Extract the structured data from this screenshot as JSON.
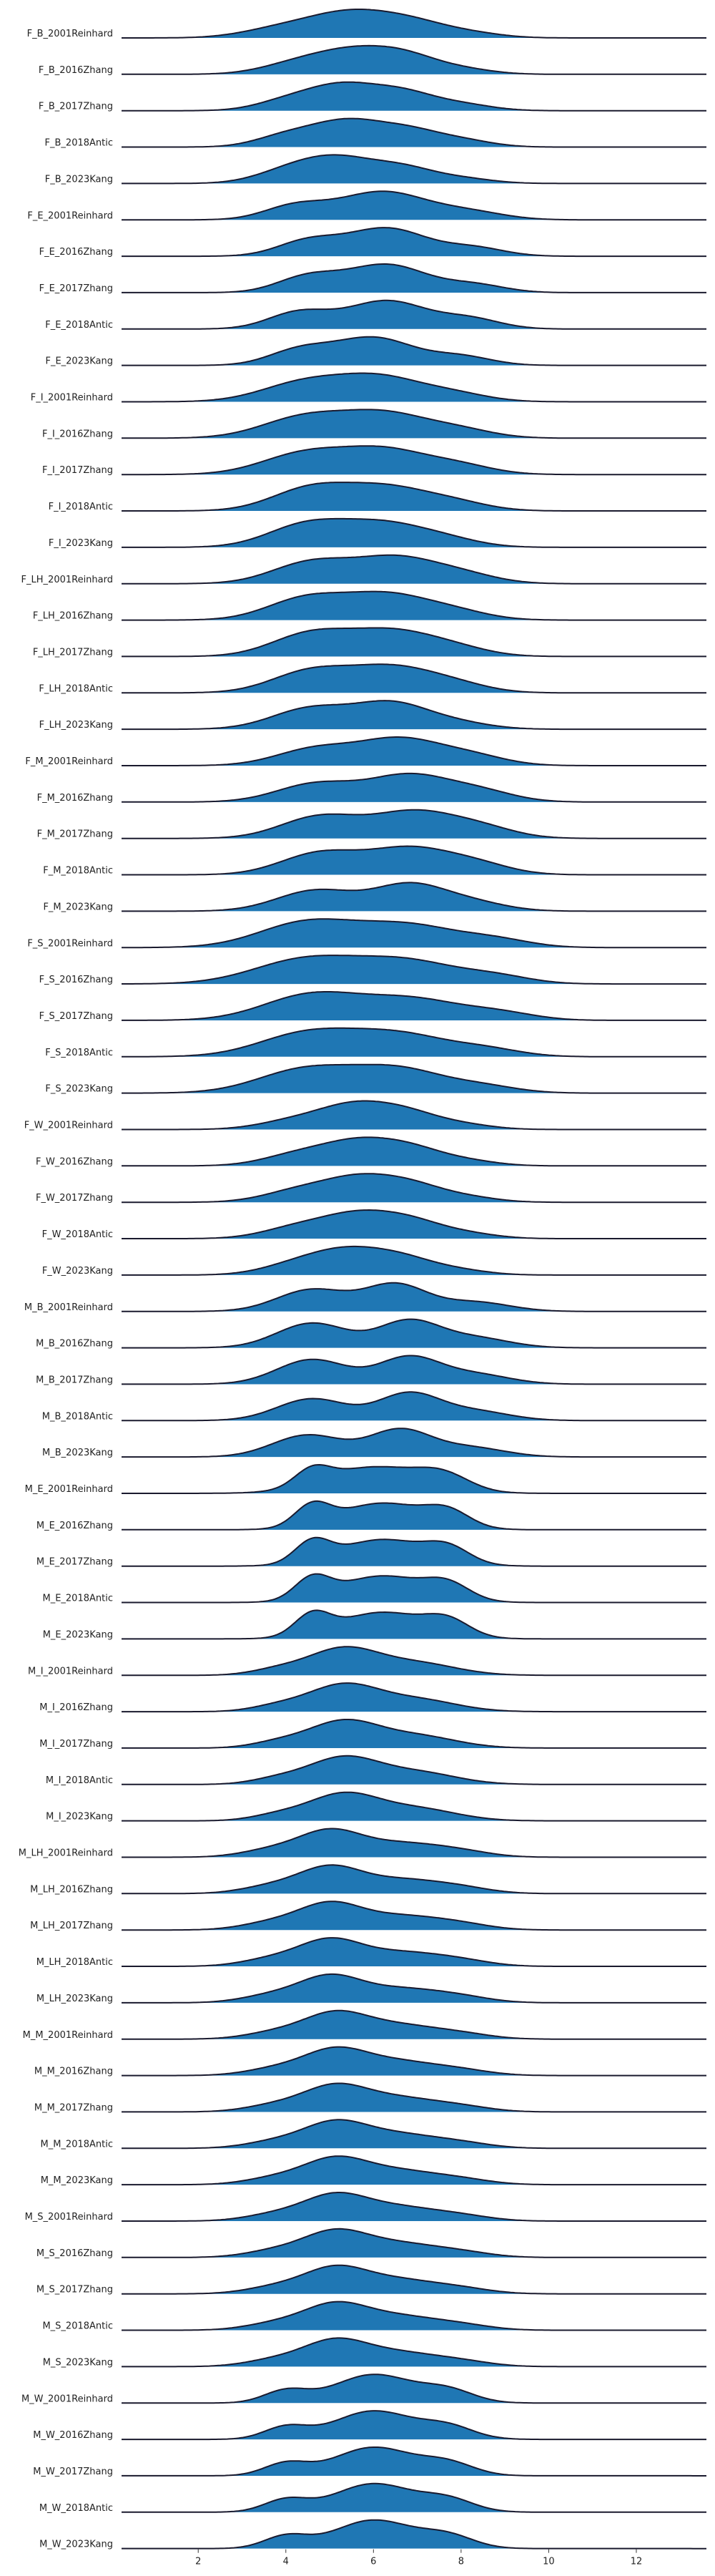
{
  "chart_data": {
    "type": "ridgeline",
    "fill_color": "#1f77b4",
    "line_color": "#1a1a2e",
    "xlim": [
      0.25,
      13.6
    ],
    "x_ticks": [
      2,
      4,
      6,
      8,
      10,
      12
    ],
    "grid": false,
    "legend": "none",
    "categories": [
      "F_B_2001Reinhard",
      "F_B_2016Zhang",
      "F_B_2017Zhang",
      "F_B_2018Antic",
      "F_B_2023Kang",
      "F_E_2001Reinhard",
      "F_E_2016Zhang",
      "F_E_2017Zhang",
      "F_E_2018Antic",
      "F_E_2023Kang",
      "F_I_2001Reinhard",
      "F_I_2016Zhang",
      "F_I_2017Zhang",
      "F_I_2018Antic",
      "F_I_2023Kang",
      "F_LH_2001Reinhard",
      "F_LH_2016Zhang",
      "F_LH_2017Zhang",
      "F_LH_2018Antic",
      "F_LH_2023Kang",
      "F_M_2001Reinhard",
      "F_M_2016Zhang",
      "F_M_2017Zhang",
      "F_M_2018Antic",
      "F_M_2023Kang",
      "F_S_2001Reinhard",
      "F_S_2016Zhang",
      "F_S_2017Zhang",
      "F_S_2018Antic",
      "F_S_2023Kang",
      "F_W_2001Reinhard",
      "F_W_2016Zhang",
      "F_W_2017Zhang",
      "F_W_2018Antic",
      "F_W_2023Kang",
      "M_B_2001Reinhard",
      "M_B_2016Zhang",
      "M_B_2017Zhang",
      "M_B_2018Antic",
      "M_B_2023Kang",
      "M_E_2001Reinhard",
      "M_E_2016Zhang",
      "M_E_2017Zhang",
      "M_E_2018Antic",
      "M_E_2023Kang",
      "M_I_2001Reinhard",
      "M_I_2016Zhang",
      "M_I_2017Zhang",
      "M_I_2018Antic",
      "M_I_2023Kang",
      "M_LH_2001Reinhard",
      "M_LH_2016Zhang",
      "M_LH_2017Zhang",
      "M_LH_2018Antic",
      "M_LH_2023Kang",
      "M_M_2001Reinhard",
      "M_M_2016Zhang",
      "M_M_2017Zhang",
      "M_M_2018Antic",
      "M_M_2023Kang",
      "M_S_2001Reinhard",
      "M_S_2016Zhang",
      "M_S_2017Zhang",
      "M_S_2018Antic",
      "M_S_2023Kang",
      "M_W_2001Reinhard",
      "M_W_2016Zhang",
      "M_W_2017Zhang",
      "M_W_2018Antic",
      "M_W_2023Kang"
    ],
    "densities": [
      [
        [
          3.8,
          0.3,
          0.85
        ],
        [
          5.5,
          1.0,
          1.0
        ],
        [
          7.0,
          0.45,
          0.8
        ],
        [
          8.3,
          0.15,
          0.7
        ]
      ],
      [
        [
          4.2,
          0.35,
          0.8
        ],
        [
          5.6,
          0.9,
          0.9
        ],
        [
          6.8,
          0.5,
          0.7
        ],
        [
          8.0,
          0.2,
          0.7
        ]
      ],
      [
        [
          4.0,
          0.35,
          0.7
        ],
        [
          5.3,
          1.0,
          0.8
        ],
        [
          6.7,
          0.65,
          0.7
        ],
        [
          8.0,
          0.25,
          0.7
        ]
      ],
      [
        [
          4.0,
          0.4,
          0.7
        ],
        [
          5.4,
          0.95,
          0.8
        ],
        [
          6.8,
          0.55,
          0.7
        ],
        [
          8.0,
          0.25,
          0.7
        ]
      ],
      [
        [
          4.0,
          0.4,
          0.75
        ],
        [
          5.2,
          1.0,
          0.85
        ],
        [
          6.7,
          0.55,
          0.7
        ],
        [
          8.0,
          0.2,
          0.7
        ]
      ],
      [
        [
          4.2,
          0.45,
          0.7
        ],
        [
          6.2,
          0.95,
          1.0
        ],
        [
          8.2,
          0.25,
          0.8
        ]
      ],
      [
        [
          4.5,
          0.45,
          0.7
        ],
        [
          6.3,
          0.85,
          0.9
        ],
        [
          8.3,
          0.25,
          0.7
        ]
      ],
      [
        [
          4.5,
          0.5,
          0.7
        ],
        [
          6.3,
          0.9,
          0.9
        ],
        [
          8.3,
          0.25,
          0.7
        ]
      ],
      [
        [
          4.3,
          0.5,
          0.7
        ],
        [
          6.3,
          0.85,
          0.9
        ],
        [
          8.2,
          0.3,
          0.7
        ]
      ],
      [
        [
          4.3,
          0.5,
          0.7
        ],
        [
          6.0,
          0.95,
          0.9
        ],
        [
          8.0,
          0.3,
          0.7
        ]
      ],
      [
        [
          4.5,
          0.75,
          1.0
        ],
        [
          6.2,
          0.8,
          0.9
        ],
        [
          7.8,
          0.3,
          0.8
        ]
      ],
      [
        [
          4.5,
          0.75,
          1.0
        ],
        [
          6.3,
          0.75,
          0.9
        ],
        [
          7.9,
          0.3,
          0.8
        ]
      ],
      [
        [
          4.5,
          0.7,
          1.0
        ],
        [
          6.3,
          0.7,
          0.9
        ],
        [
          7.9,
          0.3,
          0.8
        ]
      ],
      [
        [
          4.6,
          0.8,
          0.9
        ],
        [
          6.3,
          0.75,
          0.9
        ],
        [
          7.8,
          0.3,
          0.8
        ]
      ],
      [
        [
          4.5,
          0.85,
          0.9
        ],
        [
          6.2,
          0.8,
          0.9
        ],
        [
          7.6,
          0.3,
          0.8
        ]
      ],
      [
        [
          4.6,
          0.7,
          0.9
        ],
        [
          6.5,
          0.8,
          0.9
        ],
        [
          8.0,
          0.3,
          0.8
        ]
      ],
      [
        [
          4.5,
          0.75,
          0.9
        ],
        [
          6.3,
          0.8,
          0.9
        ],
        [
          7.8,
          0.3,
          0.8
        ]
      ],
      [
        [
          4.6,
          0.8,
          0.9
        ],
        [
          6.4,
          0.8,
          0.9
        ],
        [
          7.8,
          0.3,
          0.8
        ]
      ],
      [
        [
          4.6,
          0.75,
          0.9
        ],
        [
          6.4,
          0.8,
          0.9
        ],
        [
          7.8,
          0.3,
          0.8
        ]
      ],
      [
        [
          4.6,
          0.75,
          0.9
        ],
        [
          6.4,
          0.85,
          0.8
        ],
        [
          7.8,
          0.25,
          0.8
        ]
      ],
      [
        [
          4.7,
          0.6,
          0.9
        ],
        [
          6.6,
          0.9,
          0.9
        ],
        [
          8.2,
          0.35,
          0.8
        ]
      ],
      [
        [
          4.7,
          0.6,
          0.9
        ],
        [
          6.8,
          0.85,
          0.9
        ],
        [
          8.4,
          0.35,
          0.8
        ]
      ],
      [
        [
          4.8,
          0.7,
          0.9
        ],
        [
          6.9,
          0.8,
          0.9
        ],
        [
          8.4,
          0.35,
          0.8
        ]
      ],
      [
        [
          4.8,
          0.7,
          0.9
        ],
        [
          6.8,
          0.8,
          0.9
        ],
        [
          8.3,
          0.35,
          0.8
        ]
      ],
      [
        [
          4.7,
          0.7,
          0.9
        ],
        [
          6.8,
          0.85,
          0.8
        ],
        [
          8.2,
          0.3,
          0.8
        ]
      ],
      [
        [
          4.5,
          0.7,
          1.1
        ],
        [
          6.8,
          0.6,
          1.1
        ],
        [
          8.8,
          0.2,
          0.8
        ]
      ],
      [
        [
          4.5,
          0.7,
          1.2
        ],
        [
          6.8,
          0.6,
          1.1
        ],
        [
          8.8,
          0.2,
          0.8
        ]
      ],
      [
        [
          4.6,
          0.75,
          1.1
        ],
        [
          6.9,
          0.6,
          1.1
        ],
        [
          8.9,
          0.2,
          0.8
        ]
      ],
      [
        [
          4.5,
          0.7,
          1.1
        ],
        [
          6.6,
          0.65,
          1.1
        ],
        [
          8.6,
          0.2,
          0.8
        ]
      ],
      [
        [
          4.5,
          0.75,
          1.1
        ],
        [
          6.6,
          0.7,
          1.0
        ],
        [
          8.5,
          0.2,
          0.8
        ]
      ],
      [
        [
          4.2,
          0.35,
          0.8
        ],
        [
          5.6,
          0.95,
          0.8
        ],
        [
          6.8,
          0.55,
          0.7
        ],
        [
          8.0,
          0.2,
          0.7
        ]
      ],
      [
        [
          4.3,
          0.45,
          0.8
        ],
        [
          5.7,
          0.9,
          0.8
        ],
        [
          6.9,
          0.55,
          0.7
        ],
        [
          8.1,
          0.2,
          0.7
        ]
      ],
      [
        [
          4.3,
          0.45,
          0.8
        ],
        [
          5.7,
          0.9,
          0.8
        ],
        [
          6.9,
          0.55,
          0.7
        ],
        [
          8.1,
          0.2,
          0.7
        ]
      ],
      [
        [
          4.3,
          0.45,
          0.8
        ],
        [
          5.7,
          0.9,
          0.8
        ],
        [
          6.9,
          0.55,
          0.7
        ],
        [
          8.1,
          0.2,
          0.7
        ]
      ],
      [
        [
          4.3,
          0.45,
          0.8
        ],
        [
          5.5,
          0.9,
          0.8
        ],
        [
          6.7,
          0.55,
          0.7
        ],
        [
          7.9,
          0.2,
          0.7
        ]
      ],
      [
        [
          4.6,
          0.7,
          0.8
        ],
        [
          6.5,
          0.85,
          0.7
        ],
        [
          8.3,
          0.3,
          0.8
        ]
      ],
      [
        [
          4.6,
          0.75,
          0.8
        ],
        [
          6.8,
          0.8,
          0.7
        ],
        [
          8.3,
          0.3,
          0.8
        ]
      ],
      [
        [
          4.6,
          0.75,
          0.8
        ],
        [
          6.8,
          0.8,
          0.7
        ],
        [
          8.3,
          0.3,
          0.8
        ]
      ],
      [
        [
          4.6,
          0.7,
          0.8
        ],
        [
          6.8,
          0.85,
          0.7
        ],
        [
          8.3,
          0.3,
          0.8
        ]
      ],
      [
        [
          4.5,
          0.7,
          0.8
        ],
        [
          6.6,
          0.85,
          0.7
        ],
        [
          8.2,
          0.3,
          0.8
        ]
      ],
      [
        [
          4.6,
          0.55,
          0.4
        ],
        [
          6.0,
          0.9,
          1.1
        ],
        [
          7.6,
          0.5,
          0.6
        ]
      ],
      [
        [
          4.6,
          0.7,
          0.4
        ],
        [
          6.2,
          0.9,
          1.0
        ],
        [
          7.7,
          0.5,
          0.5
        ]
      ],
      [
        [
          4.6,
          0.7,
          0.4
        ],
        [
          6.2,
          0.9,
          1.0
        ],
        [
          7.7,
          0.5,
          0.5
        ]
      ],
      [
        [
          4.6,
          0.7,
          0.4
        ],
        [
          6.2,
          0.9,
          1.0
        ],
        [
          7.7,
          0.5,
          0.5
        ]
      ],
      [
        [
          4.6,
          0.7,
          0.4
        ],
        [
          6.2,
          0.9,
          1.0
        ],
        [
          7.7,
          0.5,
          0.5
        ]
      ],
      [
        [
          5.3,
          1.0,
          0.8
        ],
        [
          7.0,
          0.45,
          0.9
        ],
        [
          3.8,
          0.2,
          0.6
        ]
      ],
      [
        [
          5.3,
          1.0,
          0.8
        ],
        [
          7.0,
          0.45,
          0.9
        ],
        [
          3.8,
          0.2,
          0.6
        ]
      ],
      [
        [
          5.3,
          1.0,
          0.8
        ],
        [
          7.0,
          0.45,
          0.9
        ],
        [
          3.8,
          0.2,
          0.6
        ]
      ],
      [
        [
          5.3,
          1.0,
          0.8
        ],
        [
          7.0,
          0.45,
          0.9
        ],
        [
          3.8,
          0.2,
          0.6
        ]
      ],
      [
        [
          5.3,
          1.0,
          0.8
        ],
        [
          7.0,
          0.45,
          0.9
        ],
        [
          3.8,
          0.2,
          0.6
        ]
      ],
      [
        [
          3.7,
          0.3,
          0.7
        ],
        [
          5.0,
          1.0,
          0.7
        ],
        [
          6.6,
          0.55,
          0.9
        ],
        [
          8.0,
          0.2,
          0.7
        ]
      ],
      [
        [
          3.7,
          0.3,
          0.7
        ],
        [
          5.0,
          1.0,
          0.7
        ],
        [
          6.6,
          0.55,
          0.9
        ],
        [
          8.0,
          0.2,
          0.7
        ]
      ],
      [
        [
          3.7,
          0.3,
          0.7
        ],
        [
          5.0,
          1.0,
          0.7
        ],
        [
          6.6,
          0.55,
          0.9
        ],
        [
          8.0,
          0.2,
          0.7
        ]
      ],
      [
        [
          3.7,
          0.3,
          0.7
        ],
        [
          5.0,
          1.0,
          0.7
        ],
        [
          6.6,
          0.55,
          0.9
        ],
        [
          8.0,
          0.2,
          0.7
        ]
      ],
      [
        [
          3.7,
          0.3,
          0.7
        ],
        [
          5.0,
          1.0,
          0.7
        ],
        [
          6.6,
          0.55,
          0.9
        ],
        [
          8.0,
          0.2,
          0.7
        ]
      ],
      [
        [
          3.8,
          0.3,
          0.7
        ],
        [
          5.1,
          1.0,
          0.7
        ],
        [
          6.5,
          0.6,
          0.9
        ],
        [
          8.0,
          0.2,
          0.7
        ]
      ],
      [
        [
          3.8,
          0.3,
          0.7
        ],
        [
          5.1,
          1.0,
          0.7
        ],
        [
          6.5,
          0.6,
          0.9
        ],
        [
          8.0,
          0.2,
          0.7
        ]
      ],
      [
        [
          3.8,
          0.3,
          0.7
        ],
        [
          5.1,
          1.0,
          0.7
        ],
        [
          6.5,
          0.6,
          0.9
        ],
        [
          8.0,
          0.2,
          0.7
        ]
      ],
      [
        [
          3.8,
          0.3,
          0.7
        ],
        [
          5.1,
          1.0,
          0.7
        ],
        [
          6.5,
          0.6,
          0.9
        ],
        [
          8.0,
          0.2,
          0.7
        ]
      ],
      [
        [
          3.8,
          0.3,
          0.7
        ],
        [
          5.1,
          1.0,
          0.7
        ],
        [
          6.5,
          0.6,
          0.9
        ],
        [
          8.0,
          0.2,
          0.7
        ]
      ],
      [
        [
          3.8,
          0.3,
          0.7
        ],
        [
          5.1,
          1.0,
          0.7
        ],
        [
          6.5,
          0.6,
          0.9
        ],
        [
          8.0,
          0.2,
          0.7
        ]
      ],
      [
        [
          3.8,
          0.3,
          0.7
        ],
        [
          5.1,
          1.0,
          0.7
        ],
        [
          6.5,
          0.6,
          0.9
        ],
        [
          8.0,
          0.2,
          0.7
        ]
      ],
      [
        [
          3.8,
          0.3,
          0.7
        ],
        [
          5.1,
          1.0,
          0.7
        ],
        [
          6.5,
          0.6,
          0.9
        ],
        [
          8.0,
          0.2,
          0.7
        ]
      ],
      [
        [
          3.8,
          0.3,
          0.7
        ],
        [
          5.1,
          1.0,
          0.7
        ],
        [
          6.5,
          0.6,
          0.9
        ],
        [
          8.0,
          0.2,
          0.7
        ]
      ],
      [
        [
          3.8,
          0.3,
          0.7
        ],
        [
          5.1,
          1.0,
          0.7
        ],
        [
          6.5,
          0.6,
          0.9
        ],
        [
          8.0,
          0.2,
          0.7
        ]
      ],
      [
        [
          4.0,
          0.4,
          0.5
        ],
        [
          6.0,
          0.95,
          0.9
        ],
        [
          7.7,
          0.4,
          0.6
        ]
      ],
      [
        [
          4.0,
          0.4,
          0.5
        ],
        [
          6.0,
          0.95,
          0.9
        ],
        [
          7.7,
          0.4,
          0.6
        ]
      ],
      [
        [
          4.0,
          0.4,
          0.5
        ],
        [
          6.0,
          0.95,
          0.9
        ],
        [
          7.7,
          0.4,
          0.6
        ]
      ],
      [
        [
          4.0,
          0.4,
          0.5
        ],
        [
          6.0,
          0.95,
          0.9
        ],
        [
          7.7,
          0.4,
          0.6
        ]
      ],
      [
        [
          4.0,
          0.4,
          0.5
        ],
        [
          6.0,
          0.95,
          0.9
        ],
        [
          7.7,
          0.4,
          0.6
        ]
      ]
    ]
  }
}
